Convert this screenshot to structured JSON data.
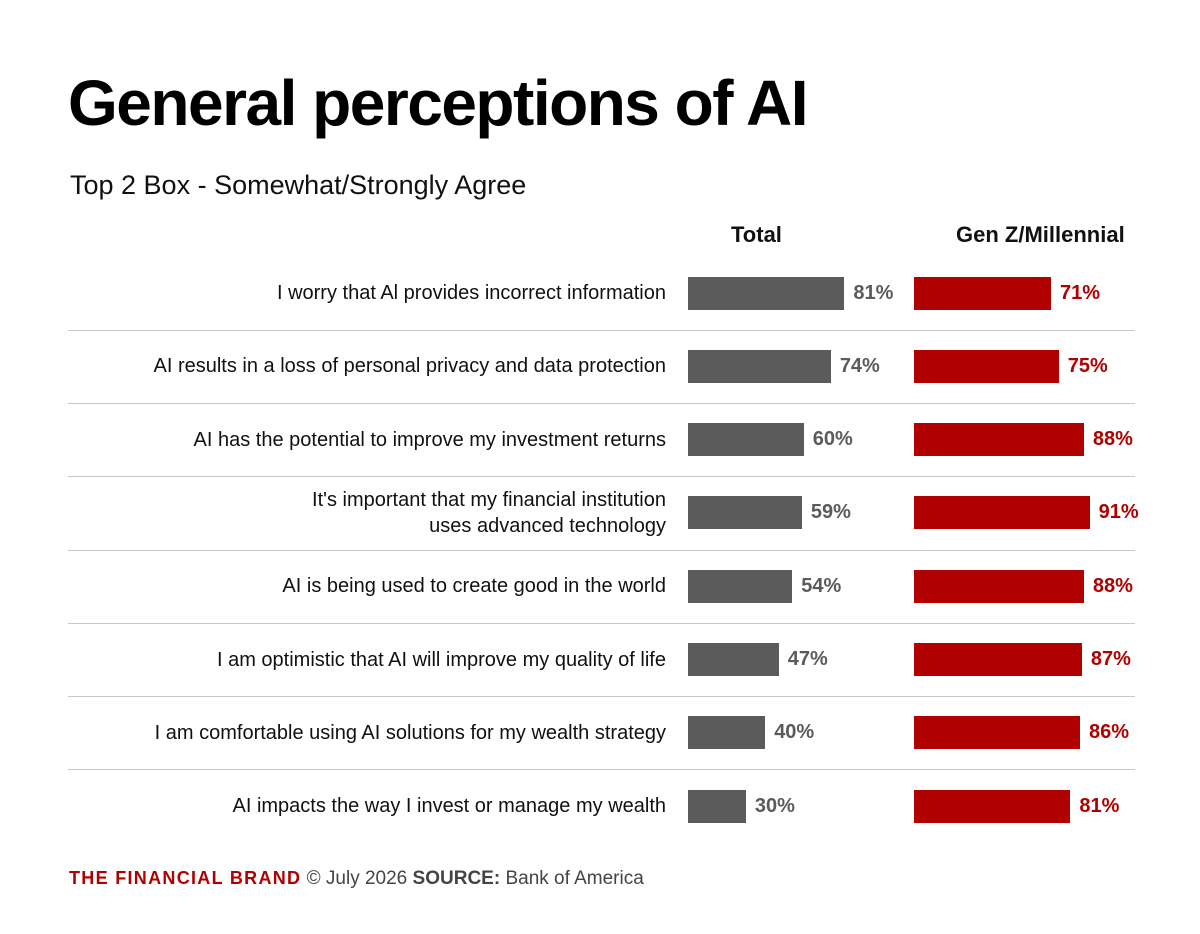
{
  "title": "General perceptions of AI",
  "subtitle": "Top 2 Box - Somewhat/Strongly Agree",
  "footer": {
    "brand": "THE FINANCIAL BRAND",
    "date": "© July 2026",
    "source_label": "SOURCE:",
    "source": "Bank of America"
  },
  "colors": {
    "total": "#5b5b5b",
    "genz": "#b00000",
    "brand": "#b00000"
  },
  "chart_data": {
    "type": "bar",
    "orientation": "horizontal",
    "title": "General perceptions of AI",
    "subtitle": "Top 2 Box - Somewhat/Strongly Agree",
    "categories": [
      "I worry that Al provides incorrect information",
      "AI results in a loss of personal privacy and data protection",
      "AI has the potential to improve my investment returns",
      "It's important that my financial institution\nuses advanced technology",
      "AI is being used to create good in the world",
      "I am optimistic that AI will improve my quality of life",
      "I am comfortable using AI solutions for my wealth strategy",
      "AI impacts the way I invest or manage my wealth"
    ],
    "series": [
      {
        "name": "Total",
        "values": [
          81,
          74,
          60,
          59,
          54,
          47,
          40,
          30
        ]
      },
      {
        "name": "Gen Z/Millennial",
        "values": [
          71,
          75,
          88,
          91,
          88,
          87,
          86,
          81
        ]
      }
    ],
    "value_suffix": "%",
    "xlim": [
      0,
      100
    ],
    "grid": false
  }
}
